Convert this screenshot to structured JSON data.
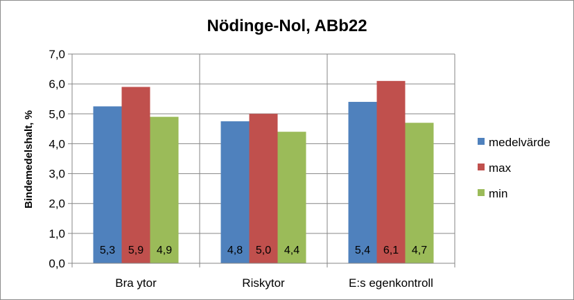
{
  "chart_data": {
    "type": "bar",
    "title": "Nödinge-Nol, ABb22",
    "xlabel": "",
    "ylabel": "Bindemedelshalt, %",
    "ylim": [
      0,
      7
    ],
    "yticks": [
      "0,0",
      "1,0",
      "2,0",
      "3,0",
      "4,0",
      "5,0",
      "6,0",
      "7,0"
    ],
    "categories": [
      "Bra ytor",
      "Riskytor",
      "E:s egenkontroll"
    ],
    "series": [
      {
        "name": "medelvärde",
        "color": "#4f81bd",
        "values": [
          5.25,
          4.75,
          5.4
        ],
        "labels": [
          "5,3",
          "4,8",
          "5,4"
        ]
      },
      {
        "name": "max",
        "color": "#c0504d",
        "values": [
          5.9,
          5.0,
          6.1
        ],
        "labels": [
          "5,9",
          "5,0",
          "6,1"
        ]
      },
      {
        "name": "min",
        "color": "#9bbb59",
        "values": [
          4.9,
          4.4,
          4.7
        ],
        "labels": [
          "4,9",
          "4,4",
          "4,7"
        ]
      }
    ],
    "grid": true,
    "legend_position": "right"
  }
}
